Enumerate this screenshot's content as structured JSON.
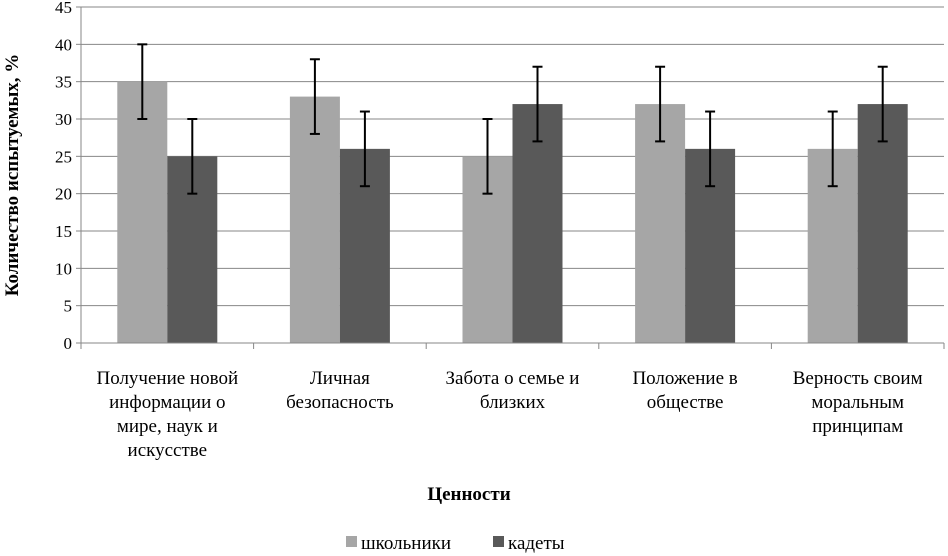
{
  "chart_data": {
    "type": "bar",
    "title": "",
    "xlabel": "Ценности",
    "ylabel": "Количество испытуемых, %",
    "ylim": [
      0,
      45
    ],
    "ytick_step": 5,
    "grid": true,
    "legend_position": "bottom",
    "categories": [
      [
        "Получение новой",
        "информации о",
        "мире, наук и",
        "искусстве"
      ],
      [
        "Личная",
        "безопасность"
      ],
      [
        "Забота о семье и",
        "близких"
      ],
      [
        "Положение в",
        "обществе"
      ],
      [
        "Верность своим",
        "моральным",
        "принципам"
      ]
    ],
    "series": [
      {
        "name": "школьники",
        "color": "#a6a6a6",
        "values": [
          35,
          33,
          25,
          32,
          26
        ],
        "error": [
          5,
          5,
          5,
          5,
          5
        ]
      },
      {
        "name": "кадеты",
        "color": "#595959",
        "values": [
          25,
          26,
          32,
          26,
          32
        ],
        "error": [
          5,
          5,
          5,
          5,
          5
        ]
      }
    ]
  }
}
